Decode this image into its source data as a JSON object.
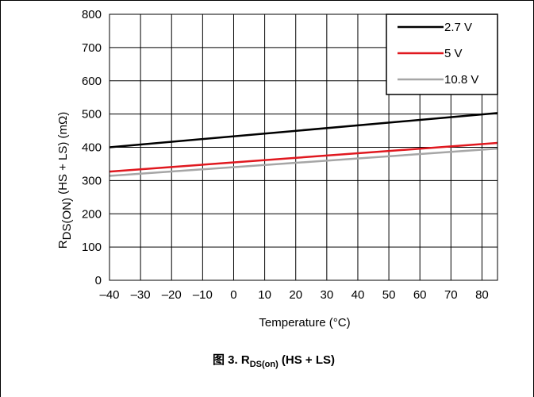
{
  "chart_data": {
    "type": "line",
    "x_unit_label": "Temperature (°C)",
    "y_label_parts": {
      "main": "R",
      "sub": "DS(ON)",
      "rest": " (HS + LS) (mΩ)"
    },
    "xlim": [
      -40,
      85
    ],
    "ylim": [
      0,
      800
    ],
    "x_ticks": [
      -40,
      -30,
      -20,
      -10,
      0,
      10,
      20,
      30,
      40,
      50,
      60,
      70,
      80
    ],
    "x_tick_labels": [
      "–40",
      "–30",
      "–20",
      "–10",
      "0",
      "10",
      "20",
      "30",
      "40",
      "50",
      "60",
      "70",
      "80"
    ],
    "y_ticks": [
      0,
      100,
      200,
      300,
      400,
      500,
      600,
      700,
      800
    ],
    "y_tick_labels": [
      "0",
      "100",
      "200",
      "300",
      "400",
      "500",
      "600",
      "700",
      "800"
    ],
    "grid": true,
    "legend_position": "top-right",
    "series": [
      {
        "name": "2.7 V",
        "color": "#000000",
        "x": [
          -40,
          85
        ],
        "values": [
          400,
          503
        ]
      },
      {
        "name": "5 V",
        "color": "#e0181f",
        "x": [
          -40,
          85
        ],
        "values": [
          327,
          413
        ]
      },
      {
        "name": "10.8 V",
        "color": "#a6a6a6",
        "x": [
          -40,
          85
        ],
        "values": [
          314,
          396
        ]
      }
    ]
  },
  "caption": {
    "prefix": "图 3. R",
    "sub": "DS(on)",
    "suffix": " (HS + LS)"
  }
}
